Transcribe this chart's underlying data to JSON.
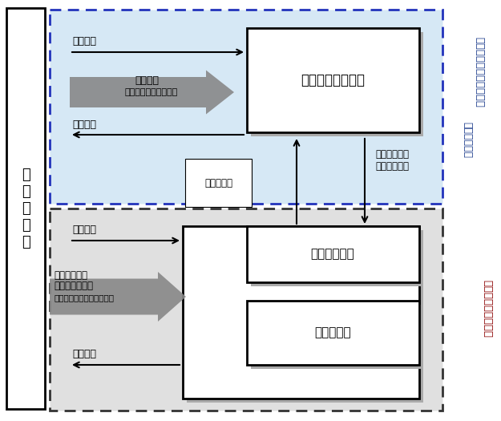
{
  "fig_width": 6.25,
  "fig_height": 5.25,
  "dpi": 100,
  "bg_color": "#ffffff",
  "top_box_bg": "#d6e8f5",
  "bottom_box_bg": "#e0e0e0",
  "mombuka_label": "文\n部\n科\n学\n省",
  "right_label_top1": "事業プロモーター支援型",
  "right_label_top2": "【今回決定】",
  "right_label_bottom": "プロジェクト支援型",
  "right_color_top": "#1a3a8b",
  "right_color_bottom": "#8b0000",
  "promoter_box_label": "事業プロモーター",
  "daigaku_box_label": "大学・独法等",
  "kenkyuu_box_label": "研究代表者",
  "arrow_top_label1": "各種評価",
  "arrow_top_label2_line1": "活動経費",
  "arrow_top_label2_line2": "（若手人材育成経費）",
  "arrow_top_label3": "実施報告",
  "arrow_bottom_label1": "各種評価",
  "arrow_bottom_label2_line1": "研究開発費・",
  "arrow_bottom_label2_line2": "事業化支援経費",
  "arrow_bottom_label2_line3": "（エコシステム支援経費）",
  "arrow_bottom_label3": "実施報告",
  "connection_label_left": "連携・協力",
  "connection_label_right": "プロジェクト\nマネジメント",
  "arrow_gray_color": "#888888",
  "dotted_border_color_top": "#2233bb",
  "dotted_border_color_bottom": "#333333",
  "shadow_color": "#aaaaaa"
}
